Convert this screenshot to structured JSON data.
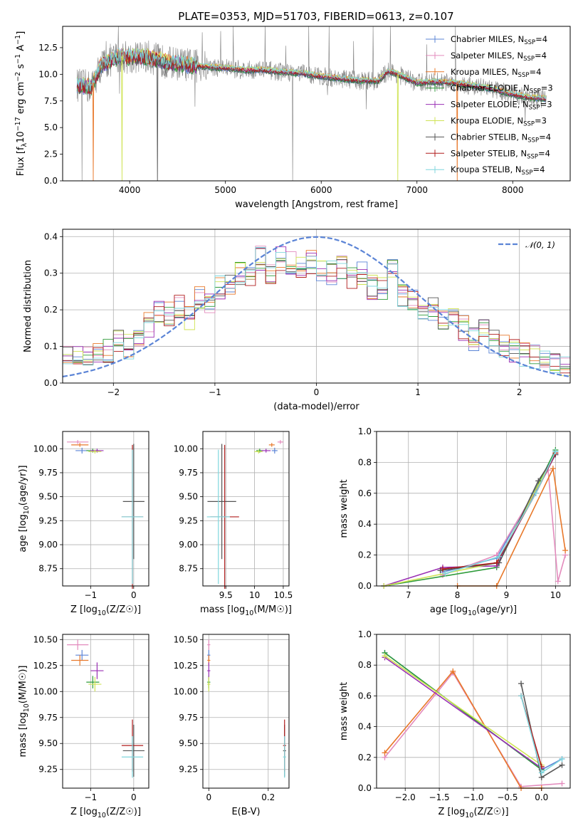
{
  "figure": {
    "title": "PLATE=0353, MJD=51703, FIBERID=0613, z=0.107"
  },
  "colors": {
    "chabrier_miles": "#5b84d6",
    "salpeter_miles": "#e38bbd",
    "kroupa_miles": "#e8782a",
    "chabrier_elodie": "#2e9b3a",
    "salpeter_elodie": "#9a2fb4",
    "kroupa_elodie": "#cfe354",
    "chabrier_stelib": "#555555",
    "salpeter_stelib": "#b01c1c",
    "kroupa_stelib": "#7fd6dd",
    "data": "#808080",
    "normal_curve": "#5b84d6"
  },
  "chart_data": [
    {
      "id": "spectrum",
      "type": "line",
      "xlabel": "wavelength [Angstrom, rest frame]",
      "ylabel": "Flux [f_λ10^-17 erg cm^-2 s^-1 A^-1]",
      "xlim": [
        3300,
        8600
      ],
      "ylim": [
        0,
        14.5
      ],
      "xticks": [
        4000,
        5000,
        6000,
        7000,
        8000
      ],
      "yticks": [
        0.0,
        2.5,
        5.0,
        7.5,
        10.0,
        12.5
      ],
      "grid": false,
      "legend_position": "right",
      "continuum_x": [
        3450,
        3600,
        3700,
        3800,
        3900,
        4000,
        4200,
        4400,
        4600,
        4800,
        5000,
        5200,
        5400,
        5600,
        5800,
        6000,
        6200,
        6400,
        6600,
        6700,
        6800,
        7000,
        7200,
        7400,
        7600,
        7800,
        8000,
        8200,
        8350
      ],
      "continuum_y": [
        9.0,
        8.8,
        10.8,
        11.3,
        11.7,
        11.6,
        11.6,
        11.1,
        10.9,
        10.7,
        10.6,
        10.4,
        10.4,
        10.2,
        10.1,
        9.8,
        9.6,
        9.4,
        9.4,
        10.3,
        10.0,
        9.2,
        9.3,
        9.2,
        8.9,
        8.6,
        8.1,
        7.8,
        7.7
      ],
      "legend": [
        {
          "label": "Chabrier MILES, N",
          "sub": "SSP",
          "suffix": "=4",
          "color": "#5b84d6"
        },
        {
          "label": "Salpeter MILES, N",
          "sub": "SSP",
          "suffix": "=4",
          "color": "#e38bbd"
        },
        {
          "label": "Kroupa MILES, N",
          "sub": "SSP",
          "suffix": "=4",
          "color": "#e8782a"
        },
        {
          "label": "Chabrier ELODIE, N",
          "sub": "SSP",
          "suffix": "=3",
          "color": "#2e9b3a"
        },
        {
          "label": "Salpeter ELODIE, N",
          "sub": "SSP",
          "suffix": "=3",
          "color": "#9a2fb4"
        },
        {
          "label": "Kroupa ELODIE, N",
          "sub": "SSP",
          "suffix": "=3",
          "color": "#cfe354"
        },
        {
          "label": "Chabrier STELIB, N",
          "sub": "SSP",
          "suffix": "=4",
          "color": "#555555"
        },
        {
          "label": "Salpeter STELIB, N",
          "sub": "SSP",
          "suffix": "=4",
          "color": "#b01c1c"
        },
        {
          "label": "Kroupa STELIB, N",
          "sub": "SSP",
          "suffix": "=4",
          "color": "#7fd6dd"
        }
      ]
    },
    {
      "id": "residuals",
      "type": "line",
      "xlabel": "(data-model)/error",
      "ylabel": "Normed distribution",
      "xlim": [
        -2.5,
        2.5
      ],
      "ylim": [
        0,
        0.42
      ],
      "xticks": [
        -2,
        -1,
        0,
        1,
        2
      ],
      "yticks": [
        0.0,
        0.1,
        0.2,
        0.3,
        0.4
      ],
      "grid": true,
      "legend": [
        {
          "label": "𝒩(0, 1)"
        }
      ],
      "legend_position": "top-right",
      "normal": {
        "mean": 0,
        "sd": 1
      },
      "hist_bin_width": 0.1,
      "hist_centers": [
        -2.45,
        -2.35,
        -2.25,
        -2.15,
        -2.05,
        -1.95,
        -1.85,
        -1.75,
        -1.65,
        -1.55,
        -1.45,
        -1.35,
        -1.25,
        -1.15,
        -1.05,
        -0.95,
        -0.85,
        -0.75,
        -0.65,
        -0.55,
        -0.45,
        -0.35,
        -0.25,
        -0.15,
        -0.05,
        0.05,
        0.15,
        0.25,
        0.35,
        0.45,
        0.55,
        0.65,
        0.75,
        0.85,
        0.95,
        1.05,
        1.15,
        1.25,
        1.35,
        1.45,
        1.55,
        1.65,
        1.75,
        1.85,
        1.95,
        2.05,
        2.15,
        2.25,
        2.35,
        2.45
      ],
      "hist_base": [
        0.07,
        0.07,
        0.08,
        0.08,
        0.09,
        0.12,
        0.1,
        0.12,
        0.16,
        0.2,
        0.19,
        0.21,
        0.18,
        0.23,
        0.22,
        0.26,
        0.27,
        0.3,
        0.3,
        0.34,
        0.3,
        0.34,
        0.33,
        0.31,
        0.33,
        0.31,
        0.3,
        0.32,
        0.28,
        0.3,
        0.26,
        0.26,
        0.31,
        0.24,
        0.22,
        0.2,
        0.2,
        0.17,
        0.18,
        0.15,
        0.12,
        0.14,
        0.11,
        0.1,
        0.09,
        0.08,
        0.07,
        0.06,
        0.05,
        0.04
      ]
    },
    {
      "id": "age_vs_Z",
      "type": "scatter",
      "xlabel": "Z [log10(Z/Z☉)]",
      "ylabel": "age  [log10(age/yr)]",
      "xlim": [
        -1.65,
        0.35
      ],
      "ylim": [
        8.57,
        10.18
      ],
      "xticks": [
        -1,
        0
      ],
      "yticks": [
        8.75,
        9.0,
        9.25,
        9.5,
        9.75,
        10.0
      ],
      "grid": true
    },
    {
      "id": "age_vs_mass",
      "type": "scatter",
      "xlabel": "mass [log10(M/M☉)]",
      "ylabel": "",
      "xlim": [
        9.1,
        10.6
      ],
      "ylim": [
        8.57,
        10.18
      ],
      "xticks": [
        9.5,
        10.0,
        10.5
      ],
      "yticks": [
        8.75,
        9.0,
        9.25,
        9.5,
        9.75,
        10.0
      ],
      "grid": true
    },
    {
      "id": "mass_weight_vs_age",
      "type": "line",
      "xlabel": "age  [log10(age/yr)]",
      "ylabel": "mass weight",
      "xlim": [
        6.35,
        10.3
      ],
      "ylim": [
        0,
        1.0
      ],
      "xticks": [
        7,
        8,
        9,
        10
      ],
      "yticks": [
        0.0,
        0.2,
        0.4,
        0.6,
        0.8,
        1.0
      ],
      "grid": true
    },
    {
      "id": "mass_vs_Z",
      "type": "scatter",
      "xlabel": "Z [log10(Z/Z☉)]",
      "ylabel": "mass [log10(M/M☉)]",
      "xlim": [
        -1.65,
        0.35
      ],
      "ylim": [
        9.07,
        10.55
      ],
      "xticks": [
        -1,
        0
      ],
      "yticks": [
        9.25,
        9.5,
        9.75,
        10.0,
        10.25,
        10.5
      ],
      "grid": true
    },
    {
      "id": "mass_vs_ebv",
      "type": "scatter",
      "xlabel": "E(B-V)",
      "ylabel": "",
      "xlim": [
        -0.02,
        0.27
      ],
      "ylim": [
        9.07,
        10.55
      ],
      "xticks": [
        0.0,
        0.2
      ],
      "yticks": [
        9.25,
        9.5,
        9.75,
        10.0,
        10.25,
        10.5
      ],
      "grid": true
    },
    {
      "id": "mass_weight_vs_Z",
      "type": "line",
      "xlabel": "Z [log10(Z/Z☉)]",
      "ylabel": "mass weight",
      "xlim": [
        -2.42,
        0.42
      ],
      "ylim": [
        0,
        1.0
      ],
      "xticks": [
        -2.0,
        -1.5,
        -1.0,
        -0.5,
        0.0
      ],
      "yticks": [
        0.0,
        0.2,
        0.4,
        0.6,
        0.8,
        1.0
      ],
      "grid": true
    }
  ],
  "fits": [
    {
      "name": "Chabrier MILES",
      "color": "#5b84d6",
      "Z": -1.2,
      "Zerr": 0.15,
      "age": 9.98,
      "ageerr": 0.03,
      "mass": 10.35,
      "masserr": 0.05,
      "ebv": 0.0
    },
    {
      "name": "Salpeter MILES",
      "color": "#e38bbd",
      "Z": -1.3,
      "Zerr": 0.25,
      "age": 10.07,
      "ageerr": 0.02,
      "mass": 10.45,
      "masserr": 0.05,
      "ebv": 0.0
    },
    {
      "name": "Kroupa MILES",
      "color": "#e8782a",
      "Z": -1.25,
      "Zerr": 0.2,
      "age": 10.04,
      "ageerr": 0.02,
      "mass": 10.3,
      "masserr": 0.05,
      "ebv": 0.0
    },
    {
      "name": "Chabrier ELODIE",
      "color": "#2e9b3a",
      "Z": -0.95,
      "Zerr": 0.15,
      "age": 9.98,
      "ageerr": 0.02,
      "mass": 10.09,
      "masserr": 0.06,
      "ebv": 0.0
    },
    {
      "name": "Salpeter ELODIE",
      "color": "#9a2fb4",
      "Z": -0.85,
      "Zerr": 0.15,
      "age": 9.98,
      "ageerr": 0.02,
      "mass": 10.2,
      "masserr": 0.08,
      "ebv": 0.0
    },
    {
      "name": "Kroupa ELODIE",
      "color": "#cfe354",
      "Z": -0.9,
      "Zerr": 0.15,
      "age": 9.97,
      "ageerr": 0.02,
      "mass": 10.07,
      "masserr": 0.07,
      "ebv": 0.0
    },
    {
      "name": "Chabrier STELIB",
      "color": "#555555",
      "Z": 0.0,
      "Zerr": 0.25,
      "age": 9.45,
      "ageerr": 0.6,
      "mass": 9.43,
      "masserr": 0.25,
      "ebv": 0.255
    },
    {
      "name": "Salpeter STELIB",
      "color": "#b01c1c",
      "Z": -0.03,
      "Zerr": 0.25,
      "age": 9.29,
      "ageerr": 0.75,
      "mass": 9.48,
      "masserr": 0.25,
      "ebv": 0.255
    },
    {
      "name": "Kroupa STELIB",
      "color": "#7fd6dd",
      "Z": -0.03,
      "Zerr": 0.25,
      "age": 9.29,
      "ageerr": 0.7,
      "mass": 9.37,
      "masserr": 0.2,
      "ebv": 0.255
    }
  ],
  "weights_by_age": [
    {
      "color": "#5b84d6",
      "age": [
        7.7,
        8.8,
        9.55,
        10.0
      ],
      "w": [
        0.09,
        0.18,
        0.6,
        0.87
      ]
    },
    {
      "color": "#e38bbd",
      "age": [
        7.7,
        8.8,
        9.85,
        10.05,
        10.2
      ],
      "w": [
        0.07,
        0.2,
        0.75,
        0.03,
        0.2
      ]
    },
    {
      "color": "#e8782a",
      "age": [
        8.0,
        8.8,
        9.95,
        10.2
      ],
      "w": [
        0.0,
        0.0,
        0.76,
        0.23
      ]
    },
    {
      "color": "#2e9b3a",
      "age": [
        6.5,
        8.8,
        10.0
      ],
      "w": [
        0.0,
        0.12,
        0.88
      ]
    },
    {
      "color": "#9a2fb4",
      "age": [
        6.5,
        7.7,
        8.8,
        10.0
      ],
      "w": [
        0.0,
        0.12,
        0.13,
        0.85
      ]
    },
    {
      "color": "#cfe354",
      "age": [
        6.5,
        8.8,
        10.0
      ],
      "w": [
        0.0,
        0.15,
        0.86
      ]
    },
    {
      "color": "#555555",
      "age": [
        7.65,
        8.85,
        9.65,
        10.0
      ],
      "w": [
        0.1,
        0.15,
        0.68,
        0.85
      ]
    },
    {
      "color": "#b01c1c",
      "age": [
        7.7,
        8.8,
        9.6,
        10.0
      ],
      "w": [
        0.11,
        0.15,
        0.6,
        0.86
      ]
    },
    {
      "color": "#7fd6dd",
      "age": [
        7.75,
        8.85,
        9.6,
        10.0
      ],
      "w": [
        0.08,
        0.19,
        0.6,
        0.87
      ]
    }
  ],
  "weights_by_Z": [
    {
      "color": "#5b84d6",
      "Z": [
        -2.3,
        0.0,
        0.3
      ],
      "w": [
        0.88,
        0.12,
        0.19
      ]
    },
    {
      "color": "#e38bbd",
      "Z": [
        -2.3,
        -1.3,
        -0.3,
        0.3
      ],
      "w": [
        0.2,
        0.75,
        0.01,
        0.03
      ]
    },
    {
      "color": "#e8782a",
      "Z": [
        -2.3,
        -1.3,
        -0.3,
        0.0
      ],
      "w": [
        0.23,
        0.76,
        0.0,
        0.0
      ]
    },
    {
      "color": "#2e9b3a",
      "Z": [
        -2.3,
        0.0
      ],
      "w": [
        0.88,
        0.12
      ]
    },
    {
      "color": "#9a2fb4",
      "Z": [
        -2.3,
        0.0
      ],
      "w": [
        0.85,
        0.13
      ]
    },
    {
      "color": "#cfe354",
      "Z": [
        -2.3,
        0.0
      ],
      "w": [
        0.86,
        0.15
      ]
    },
    {
      "color": "#555555",
      "Z": [
        -0.3,
        0.0,
        0.3
      ],
      "w": [
        0.68,
        0.07,
        0.15
      ]
    },
    {
      "color": "#b01c1c",
      "Z": [
        -0.3,
        0.0
      ],
      "w": [
        0.6,
        0.14
      ]
    },
    {
      "color": "#7fd6dd",
      "Z": [
        -0.3,
        0.0,
        0.3
      ],
      "w": [
        0.6,
        0.1,
        0.19
      ]
    }
  ]
}
